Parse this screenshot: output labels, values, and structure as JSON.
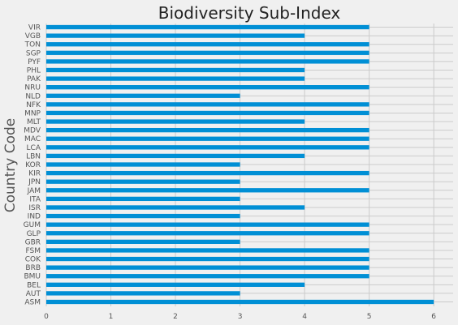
{
  "chart_data": {
    "type": "bar",
    "orientation": "horizontal",
    "title": "Biodiversity Sub-Index",
    "xlabel": "",
    "ylabel": "Country Code",
    "xlim": [
      0,
      6.3
    ],
    "xticks": [
      0,
      1,
      2,
      3,
      4,
      5,
      6
    ],
    "grid": true,
    "bar_color": "#008fd5",
    "categories": [
      "VIR",
      "VGB",
      "TON",
      "SGP",
      "PYF",
      "PHL",
      "PAK",
      "NRU",
      "NLD",
      "NFK",
      "MNP",
      "MLT",
      "MDV",
      "MAC",
      "LCA",
      "LBN",
      "KOR",
      "KIR",
      "JPN",
      "JAM",
      "ITA",
      "ISR",
      "IND",
      "GUM",
      "GLP",
      "GBR",
      "FSM",
      "COK",
      "BRB",
      "BMU",
      "BEL",
      "AUT",
      "ASM"
    ],
    "values": [
      5,
      4,
      5,
      5,
      5,
      4,
      4,
      5,
      3,
      5,
      5,
      4,
      5,
      5,
      5,
      4,
      3,
      5,
      3,
      5,
      3,
      4,
      3,
      5,
      5,
      3,
      5,
      5,
      5,
      5,
      4,
      3,
      6
    ]
  }
}
